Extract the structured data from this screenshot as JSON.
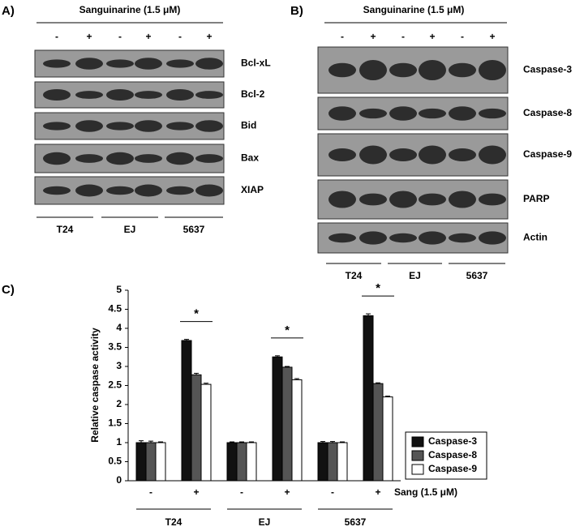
{
  "panel_a": {
    "label": "A)",
    "treatment": "Sanguinarine (1.5 μM)",
    "lanes": [
      "-",
      "+",
      "-",
      "+",
      "-",
      "+"
    ],
    "blots": [
      "Bcl-xL",
      "Bcl-2",
      "Bid",
      "Bax",
      "XIAP"
    ],
    "cell_lines": [
      "T24",
      "EJ",
      "5637"
    ]
  },
  "panel_b": {
    "label": "B)",
    "treatment": "Sanguinarine (1.5 μM)",
    "lanes": [
      "-",
      "+",
      "-",
      "+",
      "-",
      "+"
    ],
    "blots": [
      "Caspase-3",
      "Caspase-8",
      "Caspase-9",
      "PARP",
      "Actin"
    ],
    "cell_lines": [
      "T24",
      "EJ",
      "5637"
    ]
  },
  "chart_data": {
    "type": "bar",
    "panel_label": "C)",
    "ylabel": "Relative caspase activity",
    "categories": [
      "-",
      "+",
      "-",
      "+",
      "-",
      "+"
    ],
    "groups": [
      "T24",
      "EJ",
      "5637"
    ],
    "treatment_label": "Sang (1.5 μM)",
    "significance": [
      "*",
      "*",
      "*"
    ],
    "series": [
      {
        "name": "Caspase-3",
        "color": "#111111",
        "values": [
          1.0,
          3.68,
          1.0,
          3.25,
          1.0,
          4.33
        ],
        "errors": [
          0.05,
          0.03,
          0.02,
          0.03,
          0.03,
          0.05
        ]
      },
      {
        "name": "Caspase-8",
        "color": "#555555",
        "values": [
          1.0,
          2.78,
          1.0,
          2.98,
          1.0,
          2.55
        ],
        "errors": [
          0.04,
          0.04,
          0.02,
          0.02,
          0.03,
          0.02
        ]
      },
      {
        "name": "Caspase-9",
        "color": "#ffffff",
        "values": [
          1.0,
          2.53,
          1.0,
          2.65,
          1.0,
          2.2
        ],
        "errors": [
          0.02,
          0.03,
          0.02,
          0.03,
          0.02,
          0.02
        ]
      }
    ],
    "ylim": [
      0,
      5
    ],
    "yticks": [
      0,
      0.5,
      1,
      1.5,
      2,
      2.5,
      3,
      3.5,
      4,
      4.5,
      5
    ],
    "legend": "lower right"
  }
}
